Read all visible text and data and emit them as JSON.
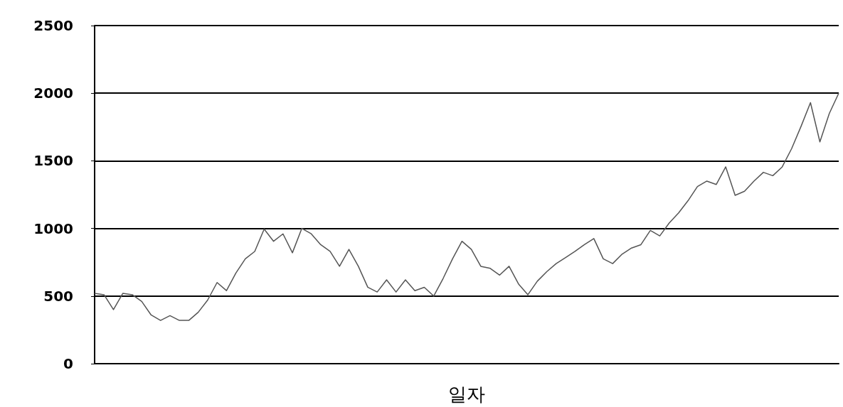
{
  "chart_data": {
    "type": "line",
    "xlabel": "일자",
    "tick_labels": "y",
    "ylim": [
      0,
      2500
    ],
    "yticks": [
      0,
      500,
      1000,
      1500,
      2000,
      2500
    ],
    "grid": "y",
    "marker": "none",
    "line_style": "solid",
    "categories": [
      null,
      null,
      null,
      null,
      null,
      null,
      null,
      null,
      null,
      null,
      null,
      null,
      null,
      null,
      null,
      null,
      null,
      null,
      null,
      null,
      null,
      null,
      null,
      null,
      null,
      null,
      null,
      null,
      null,
      null,
      null,
      null,
      null,
      null,
      null,
      null,
      null,
      null,
      null,
      null,
      null,
      null,
      null,
      null,
      null,
      null,
      null,
      null,
      null,
      null,
      null,
      null,
      null,
      null,
      null,
      null,
      null,
      null,
      null,
      null,
      null,
      null,
      null,
      null,
      null,
      null,
      null,
      null,
      null,
      null,
      null,
      null,
      null,
      null,
      null,
      null,
      null,
      null,
      null,
      null
    ],
    "series": [
      {
        "color": "#555555",
        "values": [
          520,
          510,
          400,
          520,
          510,
          460,
          360,
          320,
          355,
          320,
          320,
          380,
          470,
          600,
          540,
          670,
          775,
          830,
          995,
          905,
          960,
          820,
          1000,
          960,
          880,
          830,
          720,
          845,
          720,
          565,
          530,
          620,
          530,
          620,
          540,
          565,
          500,
          630,
          775,
          905,
          845,
          720,
          705,
          655,
          720,
          590,
          510,
          610,
          680,
          740,
          785,
          830,
          880,
          925,
          775,
          740,
          810,
          855,
          880,
          985,
          945,
          1040,
          1115,
          1205,
          1310,
          1350,
          1325,
          1455,
          1245,
          1275,
          1350,
          1415,
          1390,
          1455,
          1590,
          1755,
          1930,
          1640,
          1850,
          2000
        ]
      }
    ]
  }
}
